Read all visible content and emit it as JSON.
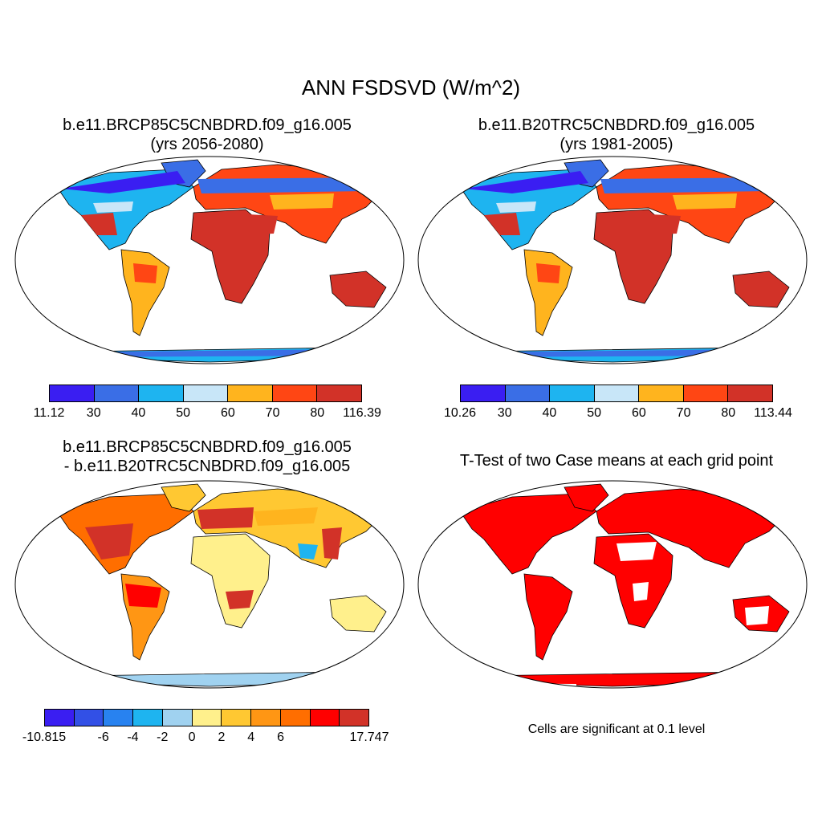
{
  "main_title": "ANN FSDSVD (W/m^2)",
  "panels": [
    {
      "title_line1": "b.e11.BRCP85C5CNBDRD.f09_g16.005",
      "title_line2": "(yrs 2056-2080)"
    },
    {
      "title_line1": "b.e11.B20TRC5CNBDRD.f09_g16.005",
      "title_line2": "(yrs 1981-2005)"
    },
    {
      "title_line1": "b.e11.BRCP85C5CNBDRD.f09_g16.005",
      "title_line2": "- b.e11.B20TRC5CNBDRD.f09_g16.005"
    },
    {
      "title_line1": "T-Test of two Case means at each grid point",
      "title_line2": ""
    }
  ],
  "significance_note": "Cells are significant at 0.1 level",
  "colorbars": [
    {
      "colors": [
        "#3a1ef2",
        "#3a6ee6",
        "#1eb4f0",
        "#c8e6f8",
        "#ffb41e",
        "#ff4614",
        "#d23228"
      ],
      "labels": [
        "11.12",
        "30",
        "40",
        "50",
        "60",
        "70",
        "80",
        "116.39"
      ]
    },
    {
      "colors": [
        "#3a1ef2",
        "#3a6ee6",
        "#1eb4f0",
        "#c8e6f8",
        "#ffb41e",
        "#ff4614",
        "#d23228"
      ],
      "labels": [
        "10.26",
        "30",
        "40",
        "50",
        "60",
        "70",
        "80",
        "113.44"
      ]
    },
    {
      "colors": [
        "#3a1ef2",
        "#3250e6",
        "#2882f0",
        "#1eb4f0",
        "#a0d2f0",
        "#fff08c",
        "#ffc832",
        "#ff9614",
        "#ff6e00",
        "#ff0000",
        "#d23228"
      ],
      "labels": [
        "-10.815",
        "",
        "-6",
        "-4",
        "-2",
        "0",
        "2",
        "4",
        "6",
        "",
        "",
        "17.747"
      ]
    }
  ],
  "ttest_color": "#ff0000"
}
